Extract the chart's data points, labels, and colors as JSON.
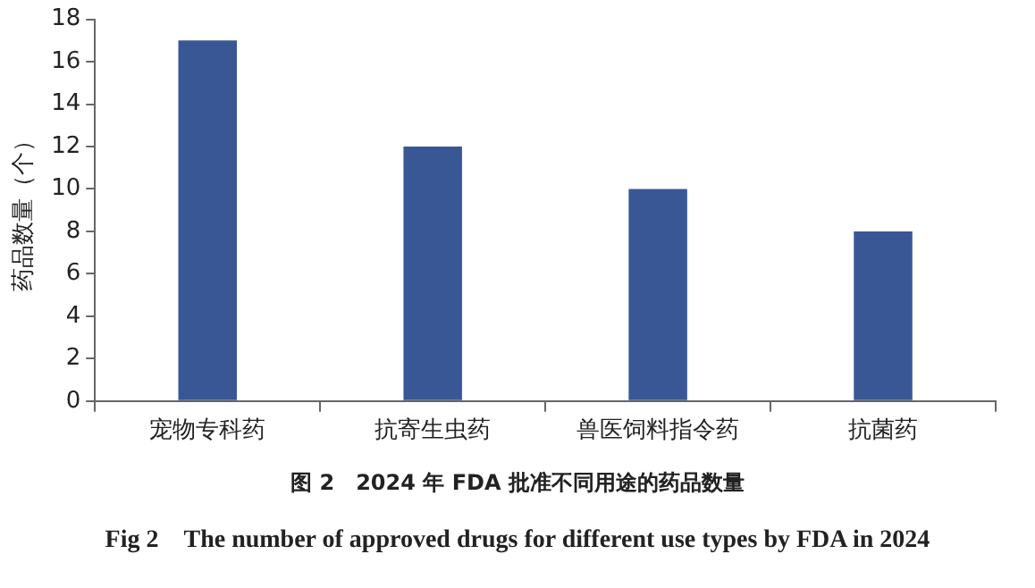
{
  "chart_data": {
    "type": "bar",
    "title": "图 2　2024 年 FDA 批准不同用途的药品数量",
    "subtitle": "Fig 2　The number of approved drugs for different use types by FDA in 2024",
    "ylabel": "药品数量（个）",
    "categories": [
      "宠物专科药",
      "抗寄生虫药",
      "兽医饲料指令药",
      "抗菌药"
    ],
    "values": [
      17,
      12,
      10,
      8
    ],
    "color": "#3a5795",
    "ylim": [
      0,
      18
    ],
    "yticks": [
      0,
      2,
      4,
      6,
      8,
      10,
      12,
      14,
      16,
      18
    ],
    "grid": false,
    "legend": false
  }
}
